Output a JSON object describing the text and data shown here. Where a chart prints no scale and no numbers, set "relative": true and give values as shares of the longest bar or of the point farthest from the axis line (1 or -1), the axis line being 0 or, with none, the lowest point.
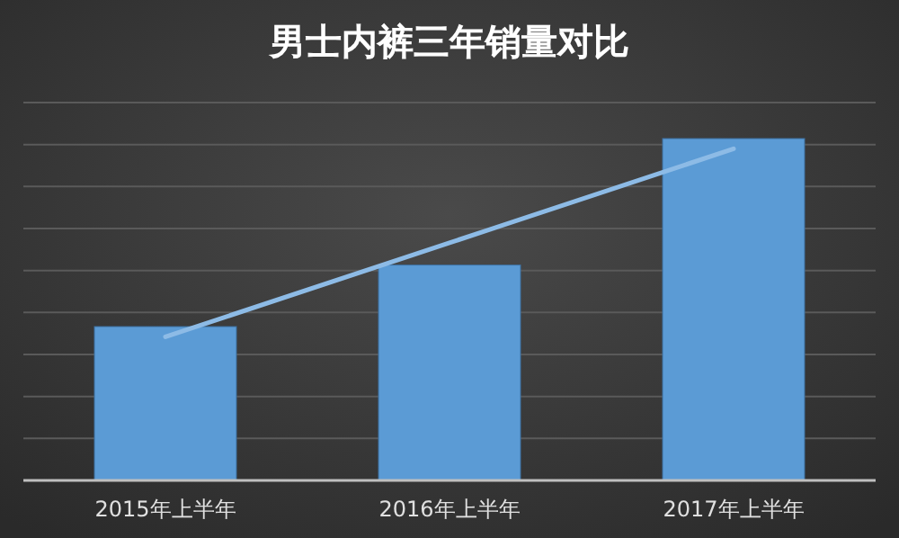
{
  "chart_data": {
    "type": "bar",
    "title": "男士内裤三年销量对比",
    "categories": [
      "2015年上半年",
      "2016年上半年",
      "2017年上半年"
    ],
    "relative": true,
    "grid": "y",
    "series": [
      {
        "color": "#5b9bd5",
        "values": [
          0.45,
          0.63,
          1
        ]
      },
      {
        "type": "line",
        "color": "#8dbbe6",
        "values": [
          0.42,
          0.695,
          0.97
        ]
      }
    ]
  }
}
